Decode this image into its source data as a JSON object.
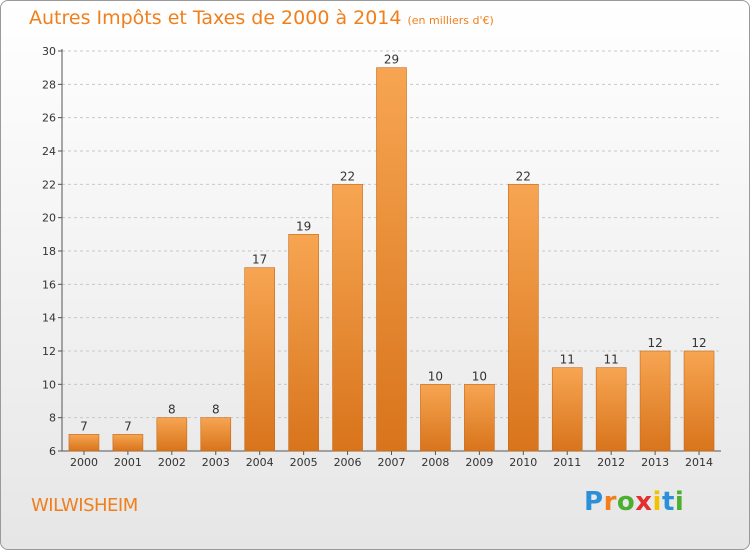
{
  "chart_data": {
    "type": "bar",
    "title": "Autres Impôts et Taxes de 2000 à 2014",
    "subtitle": "(en milliers d'€)",
    "categories": [
      "2000",
      "2001",
      "2002",
      "2003",
      "2004",
      "2005",
      "2006",
      "2007",
      "2008",
      "2009",
      "2010",
      "2011",
      "2012",
      "2013",
      "2014"
    ],
    "values": [
      7,
      7,
      8,
      8,
      17,
      19,
      22,
      29,
      10,
      10,
      22,
      11,
      11,
      12,
      12
    ],
    "ylim": [
      6,
      30
    ],
    "yticks": [
      6,
      8,
      10,
      12,
      14,
      16,
      18,
      20,
      22,
      24,
      26,
      28,
      30
    ],
    "grid": "horizontal dashed",
    "xlabel": "",
    "ylabel": ""
  },
  "location": "WILWISHEIM",
  "logo": {
    "text": "Proxiti",
    "letters": [
      {
        "char": "P",
        "color": "#2b8fd9"
      },
      {
        "char": "r",
        "color": "#f07f1c"
      },
      {
        "char": "o",
        "color": "#4caf2f"
      },
      {
        "char": "x",
        "color": "#e32f2f"
      },
      {
        "char": "i",
        "color": "#f2c200"
      },
      {
        "char": "t",
        "color": "#2b8fd9"
      },
      {
        "char": "i",
        "color": "#4caf2f"
      }
    ]
  },
  "colors": {
    "accent": "#f07f1c",
    "bar_top": "#f7a552",
    "bar_bottom": "#d8741c",
    "bar_border": "#c46a1c"
  }
}
